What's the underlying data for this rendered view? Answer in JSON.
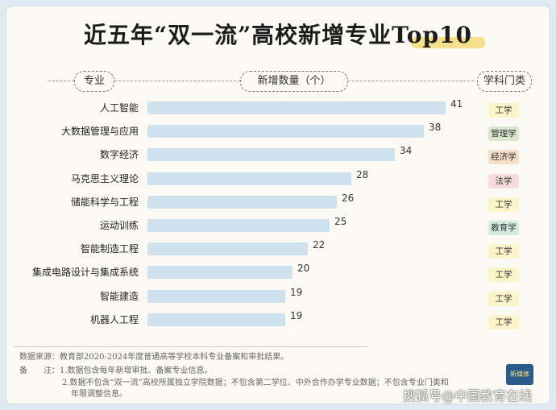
{
  "title": "近五年“双一流”高校新增专业Top10",
  "headers": {
    "major": "专业",
    "count": "新增数量（个）",
    "category": "学科门类"
  },
  "chart_data": {
    "type": "bar",
    "orientation": "horizontal",
    "title": "近五年“双一流”高校新增专业Top10",
    "xlabel": "新增数量（个）",
    "ylabel": "专业",
    "xlim": [
      0,
      41
    ],
    "grid": false,
    "categories": [
      "人工智能",
      "大数据管理与应用",
      "数字经济",
      "马克思主义理论",
      "储能科学与工程",
      "运动训练",
      "智能制造工程",
      "集成电路设计与集成系统",
      "智能建造",
      "机器人工程"
    ],
    "values": [
      41,
      38,
      34,
      28,
      26,
      25,
      22,
      20,
      19,
      19
    ],
    "discipline": [
      "工学",
      "管理学",
      "经济学",
      "法学",
      "工学",
      "教育学",
      "工学",
      "工学",
      "工学",
      "工学"
    ],
    "bar_color": "#cfe1ec"
  },
  "badge_colors": {
    "工学": "#fbf5c9",
    "管理学": "#d9e7cf",
    "经济学": "#f6dfc9",
    "法学": "#f7dcdc",
    "教育学": "#d3ebe0"
  },
  "footnotes": {
    "source": "数据来源：教育部2020-2024年度普通高等学校本科专业备案和审批结果。",
    "note1": "备　　注：1.数据包含每年新增审批、备案专业信息。",
    "note2": "2.数据不包含“双一流”高校所属独立学院数据；不包含第二学位、中外合作办学专业数据；不包含专业门类和",
    "note3": "年限调整信息。"
  },
  "logo_text": "新媒体",
  "watermark": "搜狐号@中国教育在线"
}
